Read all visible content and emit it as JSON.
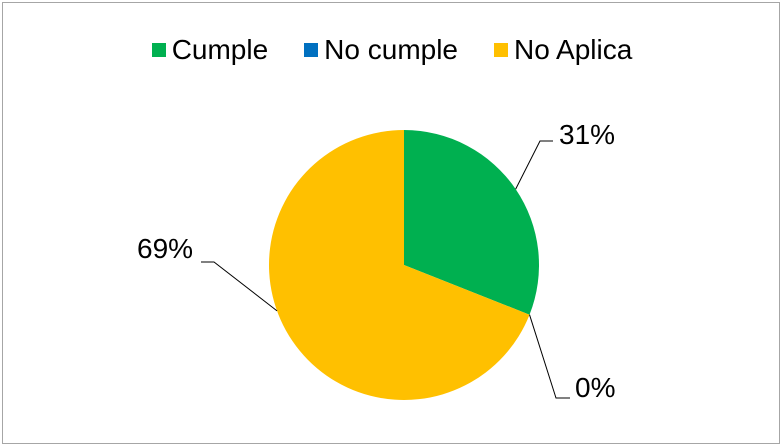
{
  "chart_data": {
    "type": "pie",
    "legend_position": "top",
    "slices": [
      {
        "label": "Cumple",
        "value": 31,
        "display": "31%",
        "color": "#00b050"
      },
      {
        "label": "No cumple",
        "value": 0,
        "display": "0%",
        "color": "#0070c0"
      },
      {
        "label": "No Aplica",
        "value": 69,
        "display": "69%",
        "color": "#ffc000"
      }
    ]
  }
}
